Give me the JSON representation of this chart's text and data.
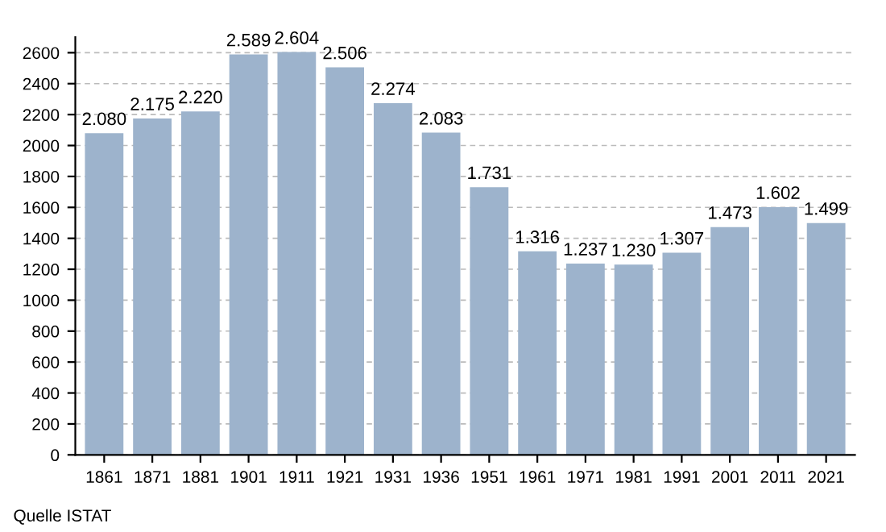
{
  "chart_data": {
    "type": "bar",
    "categories": [
      "1861",
      "1871",
      "1881",
      "1901",
      "1911",
      "1921",
      "1931",
      "1936",
      "1951",
      "1961",
      "1971",
      "1981",
      "1991",
      "2001",
      "2011",
      "2021"
    ],
    "values": [
      2080,
      2175,
      2220,
      2589,
      2604,
      2506,
      2274,
      2083,
      1731,
      1316,
      1237,
      1230,
      1307,
      1473,
      1602,
      1499
    ],
    "value_labels": [
      "2.080",
      "2.175",
      "2.220",
      "2.589",
      "2.604",
      "2.506",
      "2.274",
      "2.083",
      "1.731",
      "1.316",
      "1.237",
      "1.230",
      "1.307",
      "1.473",
      "1.602",
      "1.499"
    ],
    "color": "#9db3cc",
    "ylim": [
      0,
      2700
    ],
    "yticks": [
      0,
      200,
      400,
      600,
      800,
      1000,
      1200,
      1400,
      1600,
      1800,
      2000,
      2200,
      2400,
      2600
    ],
    "grid": "y",
    "legend": false,
    "annotations": [
      "Quelle ISTAT"
    ]
  }
}
